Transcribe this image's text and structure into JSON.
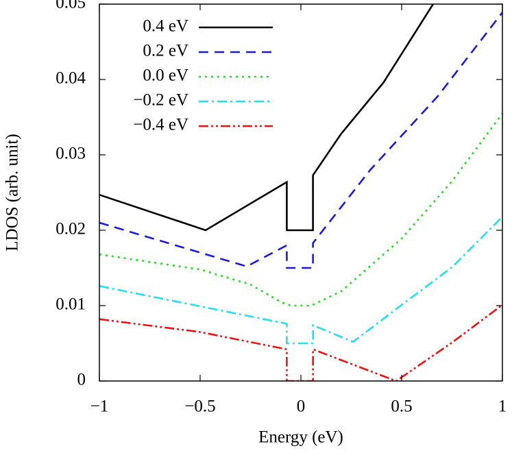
{
  "chart_data": {
    "type": "line",
    "xlabel": "Energy (eV)",
    "ylabel": "LDOS (arb. unit)",
    "xlim": [
      -1,
      1
    ],
    "ylim": [
      0,
      0.05
    ],
    "xticks": [
      {
        "value": -1,
        "label": "−1"
      },
      {
        "value": -0.5,
        "label": "−0.5"
      },
      0,
      0.5,
      1
    ],
    "yticks": [
      0,
      0.01,
      0.02,
      0.03,
      0.04,
      0.05
    ],
    "series": [
      {
        "name": "0.4 eV",
        "color": "#000000",
        "x": [
          -1,
          -0.473,
          -0.07,
          -0.07,
          0.06,
          0.06,
          0.2,
          0.41,
          0.656
        ],
        "values": [
          0.0247,
          0.02,
          0.0264,
          0.02,
          0.02,
          0.0273,
          0.0328,
          0.0396,
          0.05
        ]
      },
      {
        "name": "0.2 eV",
        "color": "#1a1adc",
        "x": [
          -1,
          -0.269,
          -0.07,
          -0.07,
          0.06,
          0.06,
          0.344,
          0.68,
          1
        ],
        "values": [
          0.021,
          0.0152,
          0.018,
          0.015,
          0.015,
          0.0183,
          0.028,
          0.0378,
          0.0489
        ]
      },
      {
        "name": "0.0 eV",
        "color": "#22dd22",
        "x": [
          -1,
          -0.5,
          -0.25,
          -0.1,
          -0.05,
          0.05,
          0.2,
          0.5,
          0.75,
          1
        ],
        "values": [
          0.0168,
          0.0148,
          0.0128,
          0.0105,
          0.01,
          0.01,
          0.0119,
          0.0189,
          0.0265,
          0.0355
        ]
      },
      {
        "name": "−0.2 eV",
        "color": "#22e0f0",
        "x": [
          -1,
          -0.07,
          -0.07,
          0.06,
          0.06,
          0.259,
          0.5,
          0.75,
          1
        ],
        "values": [
          0.0126,
          0.0076,
          0.005,
          0.005,
          0.0074,
          0.0052,
          0.0101,
          0.0151,
          0.0218
        ]
      },
      {
        "name": "−0.4 eV",
        "color": "#ee1111",
        "x": [
          -1,
          -0.5,
          -0.07,
          -0.07,
          0.06,
          0.06,
          0.473,
          0.75,
          1
        ],
        "values": [
          0.0082,
          0.0065,
          0.0042,
          0,
          0,
          0.0042,
          0,
          0.0051,
          0.0101
        ]
      }
    ]
  }
}
